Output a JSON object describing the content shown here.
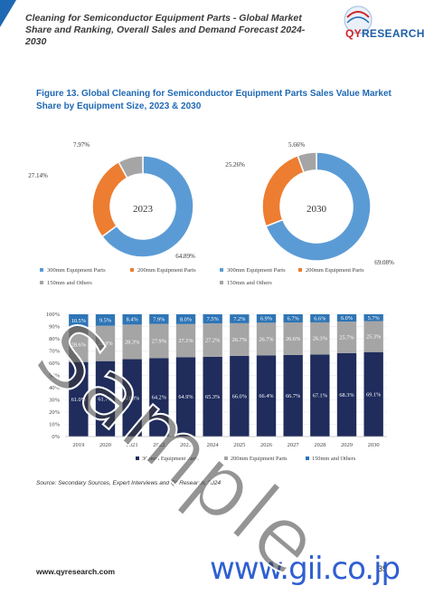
{
  "header": {
    "title": "Cleaning for Semiconductor Equipment Parts - Global Market Share and Ranking, Overall Sales and Demand Forecast 2024-2030",
    "logo_text": "QYRESEARCH"
  },
  "figure_title": "Figure 13.   Global Cleaning for Semiconductor Equipment Parts Sales Value Market Share by Equipment Size, 2023 & 2030",
  "colors": {
    "s300_donut": "#5b9bd5",
    "s200_donut": "#ed7d31",
    "s150_donut": "#a5a5a5",
    "s300_bar": "#1f2c5c",
    "s200_bar": "#a5a5a5",
    "s150_bar": "#2e75b6"
  },
  "chart_data": [
    {
      "type": "pie",
      "center_label": "2023",
      "categories": [
        "300mm Equipment Parts",
        "200mm Equipment Parts",
        "150mm and Others"
      ],
      "values": [
        64.89,
        27.14,
        7.97
      ],
      "labels": [
        "64.89%",
        "27.14%",
        "7.97%"
      ]
    },
    {
      "type": "pie",
      "center_label": "2030",
      "categories": [
        "300mm Equipment Parts",
        "200mm Equipment Parts",
        "150mm and Others"
      ],
      "values": [
        69.08,
        25.26,
        5.66
      ],
      "labels": [
        "69.08%",
        "25.26%",
        "5.66%"
      ]
    },
    {
      "type": "bar",
      "stacked": true,
      "categories": [
        "2019",
        "2020",
        "2021",
        "2022",
        "2023",
        "2024",
        "2025",
        "2026",
        "2027",
        "2028",
        "2029",
        "2030"
      ],
      "series": [
        {
          "name": "300mm Equipment Parts",
          "values": [
            61.0,
            61.7,
            63.3,
            64.2,
            64.9,
            65.3,
            66.0,
            66.4,
            66.7,
            67.1,
            68.3,
            69.1
          ]
        },
        {
          "name": "200mm Equipment Parts",
          "values": [
            28.6,
            28.9,
            28.3,
            27.9,
            27.1,
            27.2,
            26.7,
            26.7,
            26.6,
            26.3,
            25.7,
            25.3
          ]
        },
        {
          "name": "150mm and Others",
          "values": [
            10.5,
            9.5,
            8.4,
            7.9,
            8.0,
            7.5,
            7.2,
            6.9,
            6.7,
            6.6,
            6.0,
            5.7
          ]
        }
      ],
      "value_labels": {
        "300mm Equipment Parts": [
          "61.0%",
          "61.7%",
          "63.3%",
          "64.2%",
          "64.9%",
          "65.3%",
          "66.0%",
          "66.4%",
          "66.7%",
          "67.1%",
          "68.3%",
          "69.1%"
        ],
        "200mm Equipment Parts": [
          "28.6%",
          "28.9%",
          "28.3%",
          "27.9%",
          "27.1%",
          "27.2%",
          "26.7%",
          "26.7%",
          "26.6%",
          "26.3%",
          "25.7%",
          "25.3%"
        ],
        "150mm and Others": [
          "10.5%",
          "9.5%",
          "8.4%",
          "7.9%",
          "8.0%",
          "7.5%",
          "7.2%",
          "6.9%",
          "6.7%",
          "6.6%",
          "6.0%",
          "5.7%"
        ]
      },
      "y_ticks": [
        "0%",
        "10%",
        "20%",
        "30%",
        "40%",
        "50%",
        "60%",
        "70%",
        "80%",
        "90%",
        "100%"
      ],
      "ylim": [
        0,
        100
      ]
    }
  ],
  "source": "Source: Secondary Sources, Expert Interviews and QYResearch, 2024",
  "footer": {
    "url": "www.qyresearch.com",
    "page_number": "35"
  },
  "watermark": "Sample",
  "site_banner": "www.gii.co.jp"
}
